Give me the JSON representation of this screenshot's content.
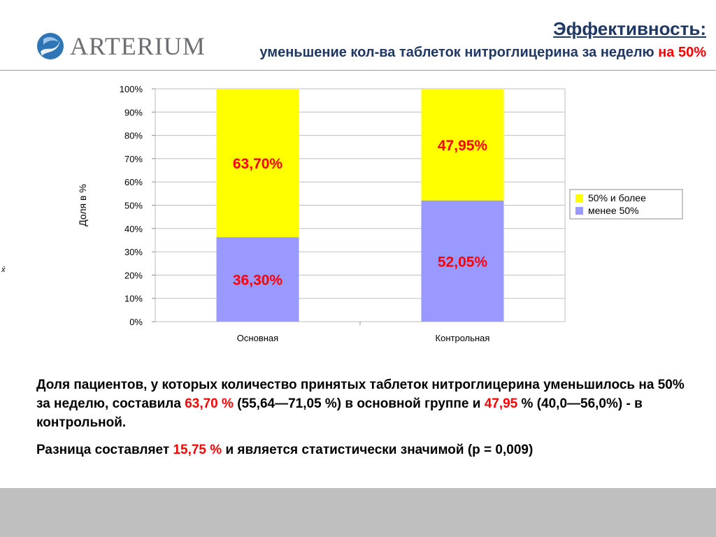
{
  "header": {
    "logo_text": "ARTERIUM",
    "title": "Эффективность:",
    "subtitle_main": "уменьшение кол-ва таблеток нитроглицерина за неделю",
    "subtitle_highlight": "на 50%"
  },
  "side_mark": "x̄",
  "chart_data": {
    "type": "bar",
    "stacked": true,
    "categories": [
      "Основная",
      "Контрольная"
    ],
    "series": [
      {
        "name": "менее 50%",
        "values": [
          36.3,
          52.05
        ],
        "labels": [
          "36,30%",
          "52,05%"
        ],
        "color": "#9999ff"
      },
      {
        "name": "50% и более",
        "values": [
          63.7,
          47.95
        ],
        "labels": [
          "63,70%",
          "47,95%"
        ],
        "color": "#ffff00"
      }
    ],
    "ylabel": "Доля в %",
    "ylim": [
      0,
      100
    ],
    "yticks": [
      "0%",
      "10%",
      "20%",
      "30%",
      "40%",
      "50%",
      "60%",
      "70%",
      "80%",
      "90%",
      "100%"
    ],
    "grid": true,
    "legend": "right",
    "label_color": "#ff0000"
  },
  "description": {
    "p1_a": "Доля пациентов, у которых количество принятых таблеток нитроглицерина уменьшилось на 50% за неделю, составила ",
    "p1_v1": "63,70 %",
    "p1_b": " (55,64—71,05 %) в основной группе и ",
    "p1_v2": "47,95",
    "p1_c": " % (40,0—56,0%) - в контрольной.",
    "p2_a": "Разница  составляет  ",
    "p2_v": "15,75 %",
    "p2_b": "  и  является  статистически  значимой  (р = 0,009)"
  }
}
